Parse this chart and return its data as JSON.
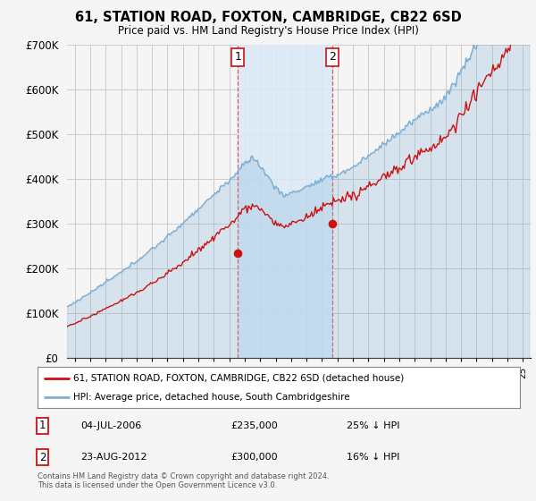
{
  "title": "61, STATION ROAD, FOXTON, CAMBRIDGE, CB22 6SD",
  "subtitle": "Price paid vs. HM Land Registry's House Price Index (HPI)",
  "ylim": [
    0,
    700000
  ],
  "yticks": [
    0,
    100000,
    200000,
    300000,
    400000,
    500000,
    600000,
    700000
  ],
  "background_color": "#f5f5f5",
  "plot_bg_color": "#f5f5f5",
  "grid_color": "#cccccc",
  "hpi_color": "#7aaed6",
  "hpi_fill_color": "#c8dff0",
  "price_color": "#cc1111",
  "transaction1": {
    "date": "04-JUL-2006",
    "price": 235000,
    "label": "25% ↓ HPI",
    "x_year": 2006.55
  },
  "transaction2": {
    "date": "23-AUG-2012",
    "price": 300000,
    "label": "16% ↓ HPI",
    "x_year": 2012.65
  },
  "legend_entry1": "61, STATION ROAD, FOXTON, CAMBRIDGE, CB22 6SD (detached house)",
  "legend_entry2": "HPI: Average price, detached house, South Cambridgeshire",
  "footnote": "Contains HM Land Registry data © Crown copyright and database right 2024.\nThis data is licensed under the Open Government Licence v3.0.",
  "shade_color": "#daeaf7",
  "xmin": 1995.5,
  "xmax": 2025.5
}
